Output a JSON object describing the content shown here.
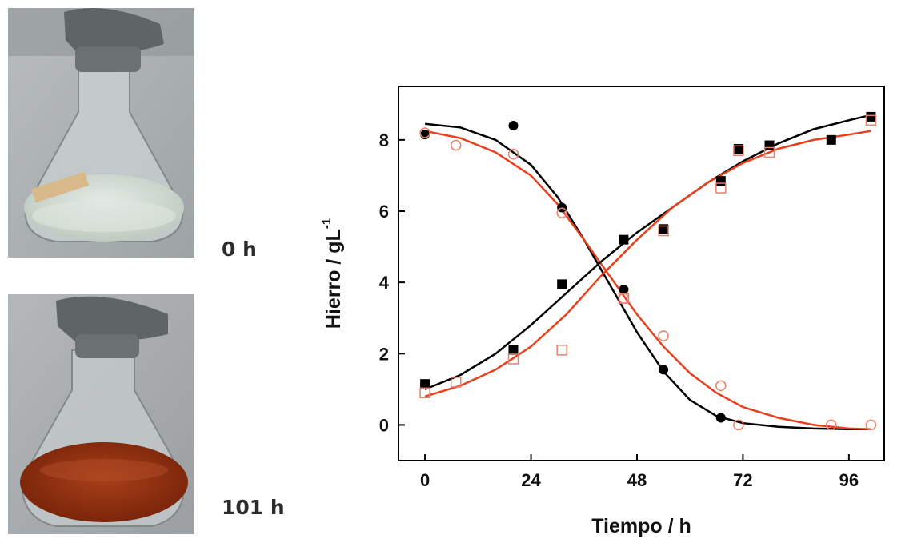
{
  "photos": {
    "top": {
      "label": "0 h",
      "liquid_color": "#cfd9cf"
    },
    "bottom": {
      "label": "101 h",
      "liquid_color": "#8a2a0a"
    }
  },
  "chart_data": {
    "type": "scatter",
    "xlabel": "Tiempo / h",
    "ylabel": "Hierro  / gL",
    "ylabel_superscript": "-1",
    "xlim": [
      -6,
      104
    ],
    "ylim": [
      -1,
      9.5
    ],
    "xticks": [
      0,
      24,
      48,
      72,
      96
    ],
    "yticks": [
      0,
      2,
      4,
      6,
      8
    ],
    "grid": false,
    "series": [
      {
        "marker": "filled-circle",
        "color": "#000000",
        "points": [
          [
            0,
            8.15
          ],
          [
            20,
            8.4
          ],
          [
            31,
            6.1
          ],
          [
            45,
            3.8
          ],
          [
            54,
            1.55
          ],
          [
            67,
            0.2
          ]
        ]
      },
      {
        "marker": "open-circle",
        "color": "#e8806a",
        "points": [
          [
            0,
            8.2
          ],
          [
            7,
            7.85
          ],
          [
            20,
            7.6
          ],
          [
            31,
            5.95
          ],
          [
            45,
            3.55
          ],
          [
            54,
            2.5
          ],
          [
            67,
            1.1
          ],
          [
            71,
            0.0
          ],
          [
            92,
            0.0
          ],
          [
            101,
            0.0
          ]
        ]
      },
      {
        "marker": "filled-square",
        "color": "#000000",
        "points": [
          [
            0,
            1.15
          ],
          [
            20,
            2.1
          ],
          [
            31,
            3.95
          ],
          [
            45,
            5.2
          ],
          [
            54,
            5.5
          ],
          [
            67,
            6.85
          ],
          [
            71,
            7.75
          ],
          [
            78,
            7.85
          ],
          [
            92,
            8.0
          ],
          [
            101,
            8.65
          ]
        ]
      },
      {
        "marker": "open-square",
        "color": "#e8806a",
        "points": [
          [
            0,
            0.9
          ],
          [
            7,
            1.2
          ],
          [
            20,
            1.85
          ],
          [
            31,
            2.1
          ],
          [
            45,
            3.55
          ],
          [
            54,
            5.45
          ],
          [
            67,
            6.65
          ],
          [
            71,
            7.7
          ],
          [
            78,
            7.65
          ],
          [
            101,
            8.55
          ]
        ]
      },
      {
        "line": true,
        "color": "#000000",
        "points": [
          [
            0,
            8.45
          ],
          [
            8,
            8.35
          ],
          [
            16,
            8.0
          ],
          [
            24,
            7.3
          ],
          [
            30,
            6.4
          ],
          [
            36,
            5.2
          ],
          [
            42,
            3.9
          ],
          [
            48,
            2.6
          ],
          [
            54,
            1.5
          ],
          [
            60,
            0.7
          ],
          [
            66,
            0.25
          ],
          [
            72,
            0.05
          ],
          [
            80,
            -0.05
          ],
          [
            88,
            -0.1
          ],
          [
            96,
            -0.12
          ],
          [
            101,
            -0.12
          ]
        ]
      },
      {
        "line": true,
        "color": "#e8401c",
        "points": [
          [
            0,
            8.25
          ],
          [
            8,
            8.05
          ],
          [
            16,
            7.65
          ],
          [
            24,
            7.0
          ],
          [
            30,
            6.2
          ],
          [
            36,
            5.2
          ],
          [
            42,
            4.15
          ],
          [
            48,
            3.1
          ],
          [
            54,
            2.2
          ],
          [
            60,
            1.45
          ],
          [
            66,
            0.9
          ],
          [
            72,
            0.5
          ],
          [
            80,
            0.2
          ],
          [
            88,
            0.0
          ],
          [
            96,
            -0.1
          ],
          [
            101,
            -0.12
          ]
        ]
      },
      {
        "line": true,
        "color": "#000000",
        "points": [
          [
            0,
            1.0
          ],
          [
            8,
            1.4
          ],
          [
            16,
            2.0
          ],
          [
            24,
            2.8
          ],
          [
            32,
            3.7
          ],
          [
            40,
            4.6
          ],
          [
            48,
            5.4
          ],
          [
            56,
            6.1
          ],
          [
            64,
            6.8
          ],
          [
            72,
            7.4
          ],
          [
            80,
            7.9
          ],
          [
            88,
            8.3
          ],
          [
            96,
            8.55
          ],
          [
            101,
            8.7
          ]
        ]
      },
      {
        "line": true,
        "color": "#e8401c",
        "points": [
          [
            0,
            0.8
          ],
          [
            8,
            1.1
          ],
          [
            16,
            1.55
          ],
          [
            24,
            2.2
          ],
          [
            32,
            3.1
          ],
          [
            40,
            4.2
          ],
          [
            48,
            5.2
          ],
          [
            56,
            6.1
          ],
          [
            64,
            6.8
          ],
          [
            72,
            7.35
          ],
          [
            80,
            7.75
          ],
          [
            88,
            8.0
          ],
          [
            96,
            8.15
          ],
          [
            101,
            8.25
          ]
        ]
      }
    ]
  }
}
